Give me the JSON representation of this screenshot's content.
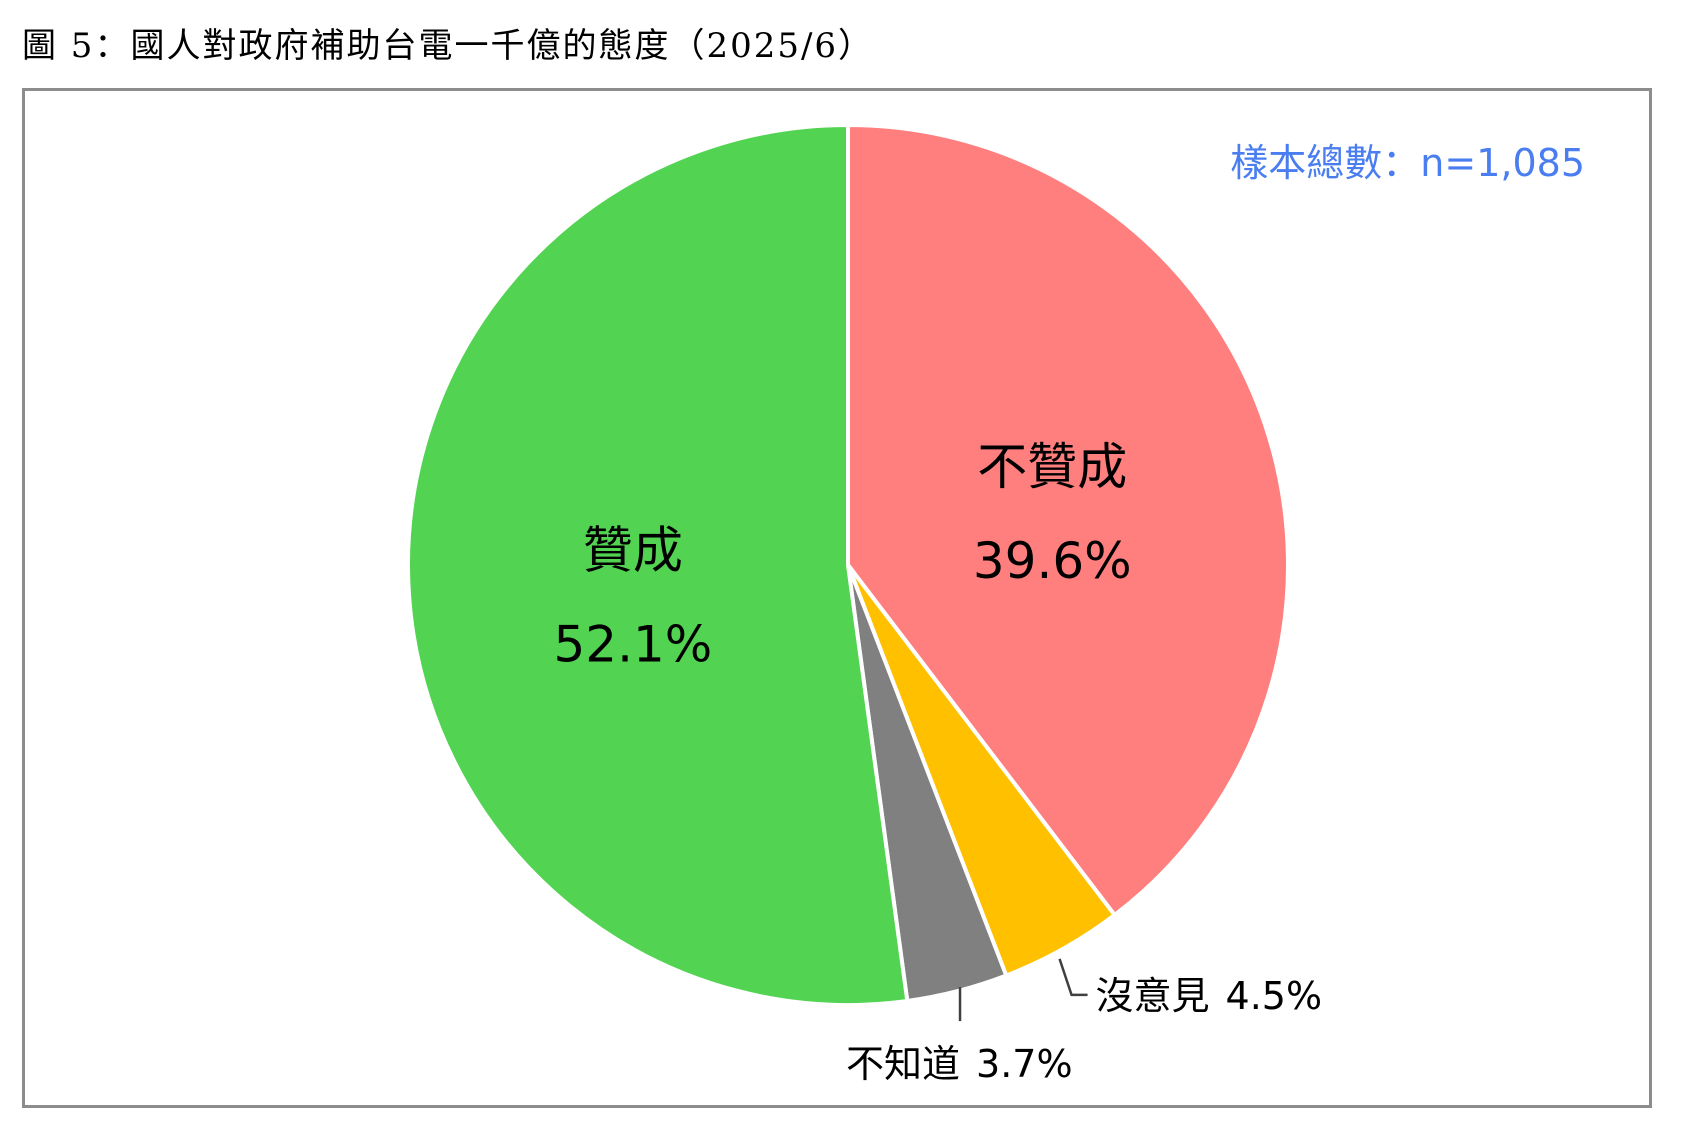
{
  "title": "圖 5：國人對政府補助台電一千億的態度（2025/6）",
  "sample_note": "樣本總數：n=1,085",
  "chart_data": {
    "type": "pie",
    "slices": [
      {
        "label": "不贊成",
        "value": 39.6,
        "value_label": "39.6%",
        "color": "#FF7F7E"
      },
      {
        "label": "沒意見",
        "value": 4.5,
        "value_label": "4.5%",
        "color": "#FFC000"
      },
      {
        "label": "不知道",
        "value": 3.7,
        "value_label": "3.7%",
        "color": "#808080"
      },
      {
        "label": "贊成",
        "value": 52.1,
        "value_label": "52.1%",
        "color": "#52D452"
      }
    ],
    "start": "12 o'clock",
    "direction": "clockwise"
  },
  "colors": {
    "sample_text": "#4A7EF0",
    "frame": "#8C8C8C",
    "slice_border": "#FFFFFF"
  }
}
